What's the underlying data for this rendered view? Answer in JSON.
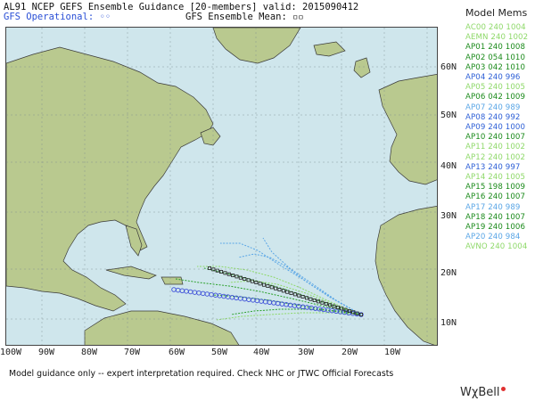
{
  "header": {
    "title": "AL91 NCEP GEFS Ensemble Guidance [20-members] valid: 2015090412",
    "gfs_operational": "GFS Operational: ◦◦",
    "ensemble_mean": "GFS Ensemble Mean: ▫▫"
  },
  "axes": {
    "lat_labels": [
      "60N",
      "50N",
      "40N",
      "30N",
      "20N",
      "10N"
    ],
    "lon_labels": [
      "100W",
      "90W",
      "80W",
      "70W",
      "60W",
      "50W",
      "40W",
      "30W",
      "20W",
      "10W"
    ]
  },
  "legend": {
    "title": "Model Mems",
    "members": [
      {
        "label": "AC00 240 1004",
        "color": "#8fd96a"
      },
      {
        "label": "AEMN 240 1002",
        "color": "#8fd96a"
      },
      {
        "label": "AP01 240 1008",
        "color": "#1a8a1a"
      },
      {
        "label": "AP02 054 1010",
        "color": "#1a8a1a"
      },
      {
        "label": "AP03 042 1010",
        "color": "#1a8a1a"
      },
      {
        "label": "AP04 240 996",
        "color": "#2d5fd6"
      },
      {
        "label": "AP05 240 1005",
        "color": "#8fd96a"
      },
      {
        "label": "AP06 042 1009",
        "color": "#1a8a1a"
      },
      {
        "label": "AP07 240 989",
        "color": "#5aa6e6"
      },
      {
        "label": "AP08 240 992",
        "color": "#2d5fd6"
      },
      {
        "label": "AP09 240 1000",
        "color": "#2d5fd6"
      },
      {
        "label": "AP10 240 1007",
        "color": "#1a8a1a"
      },
      {
        "label": "AP11 240 1002",
        "color": "#8fd96a"
      },
      {
        "label": "AP12 240 1002",
        "color": "#8fd96a"
      },
      {
        "label": "AP13 240 997",
        "color": "#2d5fd6"
      },
      {
        "label": "AP14 240 1005",
        "color": "#8fd96a"
      },
      {
        "label": "AP15 198 1009",
        "color": "#1a8a1a"
      },
      {
        "label": "AP16 240 1007",
        "color": "#1a8a1a"
      },
      {
        "label": "AP17 240 989",
        "color": "#5aa6e6"
      },
      {
        "label": "AP18 240 1007",
        "color": "#1a8a1a"
      },
      {
        "label": "AP19 240 1006",
        "color": "#1a8a1a"
      },
      {
        "label": "AP20 240 984",
        "color": "#5aa6e6"
      },
      {
        "label": "AVNO 240 1004",
        "color": "#8fd96a"
      }
    ]
  },
  "footer": "Model guidance only -- expert interpretation required.  Check NHC or JTWC Official Forecasts",
  "logo": "WχBell",
  "colors": {
    "ocean": "#cfe6ec",
    "land": "#b9c98f",
    "track_operational": "#3d4fd8",
    "track_mean": "#222222",
    "track_green": "#2aa02a",
    "track_light_green": "#8fd96a",
    "track_blue": "#5aa6e6"
  }
}
